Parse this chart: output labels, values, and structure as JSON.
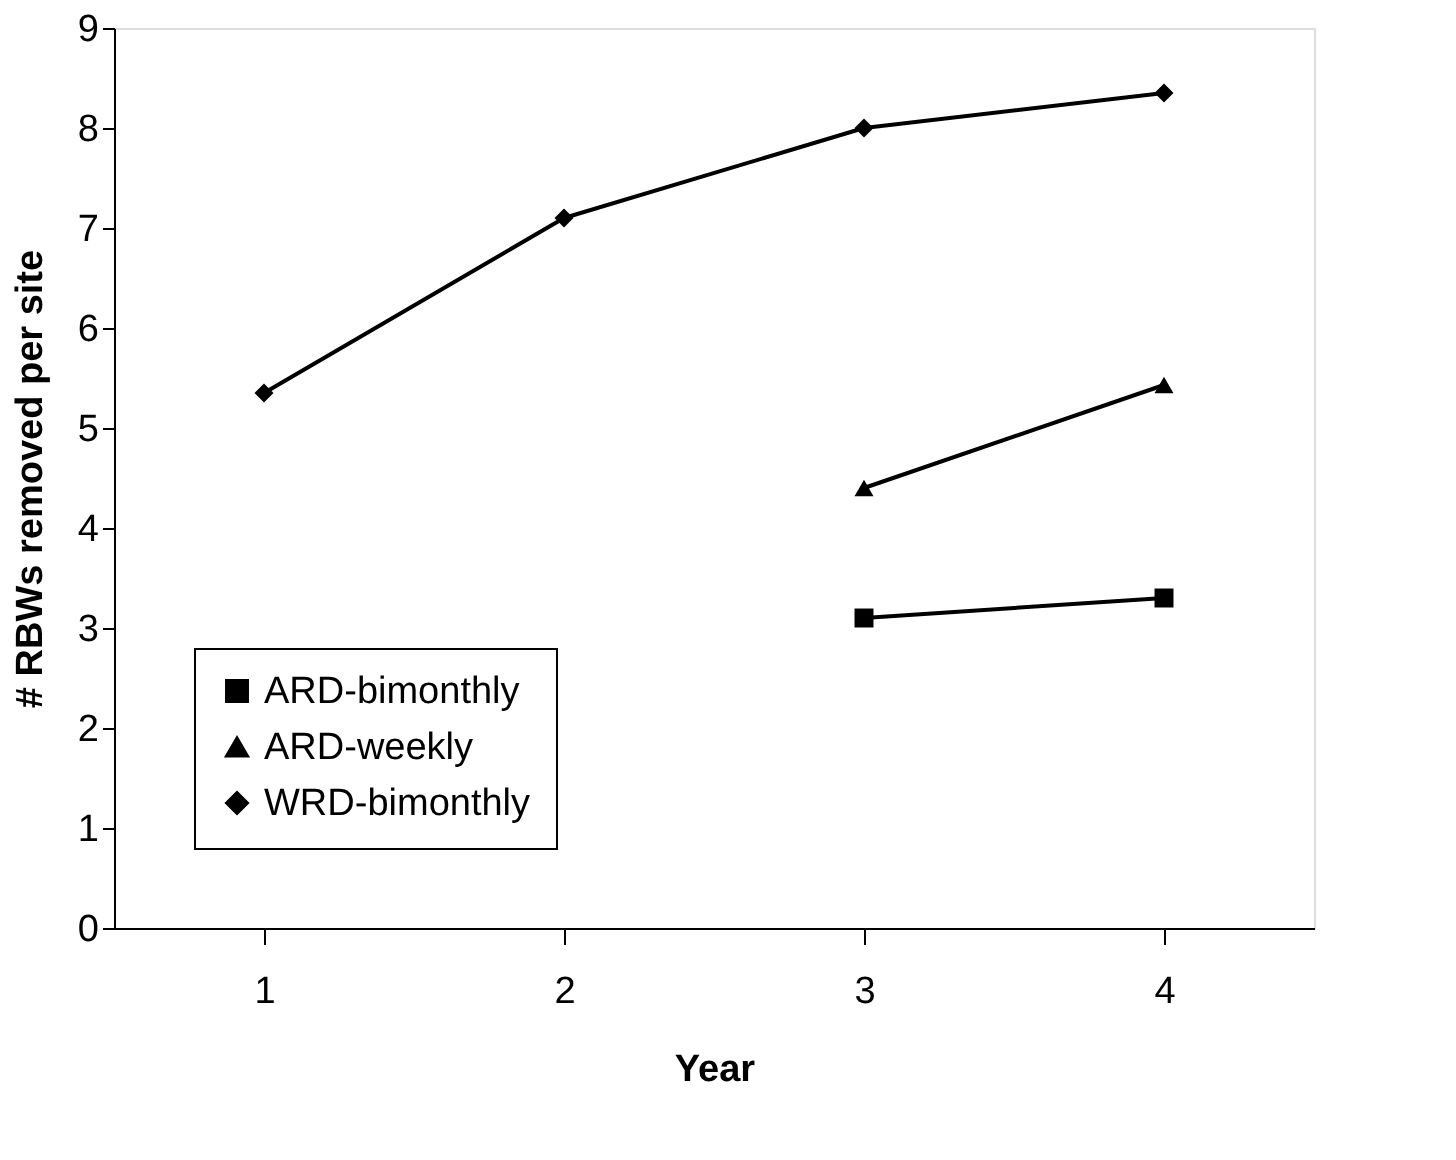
{
  "chart_data": {
    "type": "line",
    "xlabel": "Year",
    "ylabel": "# RBWs removed per site",
    "categories": [
      "1",
      "2",
      "3",
      "4"
    ],
    "series": [
      {
        "name": "ARD-bimonthly",
        "color": "#000000",
        "marker": "square",
        "values": [
          null,
          null,
          3.1,
          3.3
        ]
      },
      {
        "name": "ARD-weekly",
        "color": "#000000",
        "marker": "triangle",
        "values": [
          null,
          null,
          4.4,
          5.43
        ]
      },
      {
        "name": "WRD-bimonthly",
        "color": "#000000",
        "marker": "diamond",
        "values": [
          5.35,
          7.1,
          8.0,
          8.35
        ]
      }
    ],
    "ylim": [
      0,
      9
    ],
    "yticks": [
      0,
      1,
      2,
      3,
      4,
      5,
      6,
      7,
      8,
      9
    ],
    "grid": false,
    "legend": "bottom left",
    "line_style": "solid"
  }
}
